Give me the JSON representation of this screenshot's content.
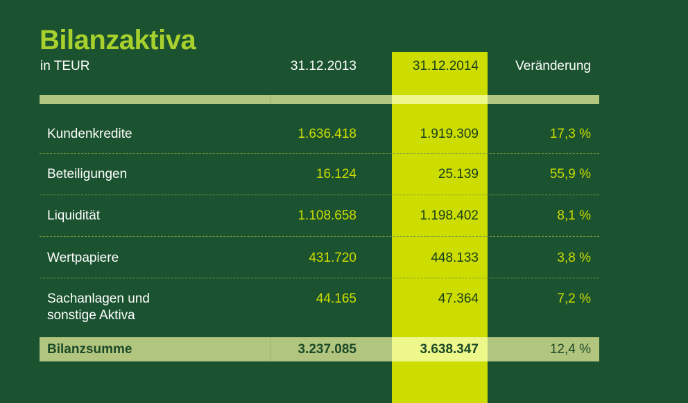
{
  "title": "Bilanzaktiva",
  "subtitle": "in TEUR",
  "colors": {
    "background": "#1b5330",
    "title_green": "#a8d12d",
    "highlight_column": "#cddd00",
    "bar": "#b2c57e",
    "bar_highlight": "#eef78a"
  },
  "chart_data": {
    "type": "table",
    "title": "Bilanzaktiva",
    "subtitle": "in TEUR",
    "columns": [
      "",
      "31.12.2013",
      "31.12.2014",
      "Veränderung"
    ],
    "highlighted_column": "31.12.2014",
    "rows": [
      {
        "label": "Kundenkredite",
        "v2013": "1.636.418",
        "v2014": "1.919.309",
        "change": "17,3 %"
      },
      {
        "label": "Beteiligungen",
        "v2013": "16.124",
        "v2014": "25.139",
        "change": "55,9 %"
      },
      {
        "label": "Liquidität",
        "v2013": "1.108.658",
        "v2014": "1.198.402",
        "change": "8,1 %"
      },
      {
        "label": "Wertpapiere",
        "v2013": "431.720",
        "v2014": "448.133",
        "change": "3,8 %"
      },
      {
        "label_line1": "Sachanlagen und",
        "label_line2": "sonstige Aktiva",
        "v2013": "44.165",
        "v2014": "47.364",
        "change": "7,2 %"
      }
    ],
    "total": {
      "label": "Bilanzsumme",
      "v2013": "3.237.085",
      "v2014": "3.638.347",
      "change": "12,4 %"
    }
  }
}
